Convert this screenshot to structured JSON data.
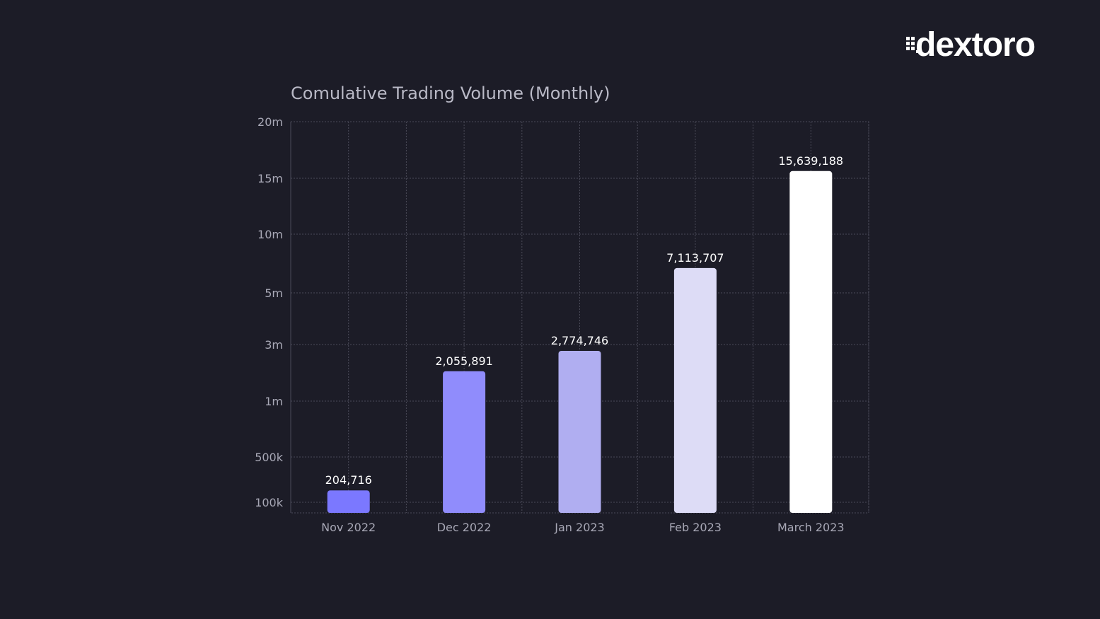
{
  "brand": {
    "name": "DEXTORO",
    "wordmark": "dextoro"
  },
  "chart_data": {
    "type": "bar",
    "title": "Comulative Trading Volume (Monthly)",
    "xlabel": "",
    "ylabel": "",
    "categories": [
      "Nov 2022",
      "Dec 2022",
      "Jan 2023",
      "Feb 2023",
      "March 2023"
    ],
    "values": [
      204716,
      2055891,
      2774746,
      7113707,
      15639188
    ],
    "value_labels": [
      "204,716",
      "2,055,891",
      "2,774,746",
      "7,113,707",
      "15,639,188"
    ],
    "bar_colors": [
      "#7b78ff",
      "#908cfc",
      "#b0aef1",
      "#dddcf6",
      "#ffffff"
    ],
    "y_ticks": [
      {
        "value": 100000,
        "label": "100k"
      },
      {
        "value": 500000,
        "label": "500k"
      },
      {
        "value": 1000000,
        "label": "1m"
      },
      {
        "value": 3000000,
        "label": "3m"
      },
      {
        "value": 5000000,
        "label": "5m"
      },
      {
        "value": 10000000,
        "label": "10m"
      },
      {
        "value": 15000000,
        "label": "15m"
      },
      {
        "value": 20000000,
        "label": "20m"
      }
    ],
    "ylim": [
      100000,
      20000000
    ],
    "y_scale": "piecewise (ticks evenly spaced)",
    "grid": true,
    "legend": "none"
  },
  "colors": {
    "background": "#1c1c27",
    "grid": "#4a4a58",
    "axis_text": "#a8a8b6",
    "title_text": "#b9b9c6",
    "value_text": "#ffffff"
  }
}
